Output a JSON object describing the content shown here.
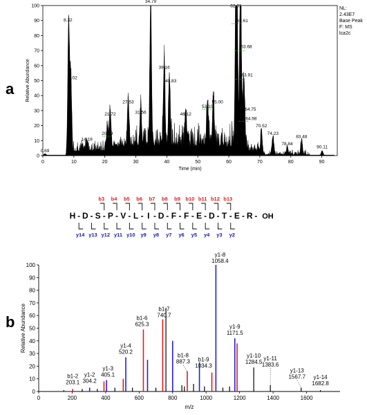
{
  "panels": {
    "a": "a",
    "b": "b"
  },
  "colors": {
    "trace": "#000000",
    "label_dash": "#00b000",
    "b_ion": "#e31a1c",
    "y_ion": "#1f1fd6",
    "b_label": "#e31a1c",
    "y_label": "#1a1aa8"
  },
  "chart_data": [
    {
      "type": "line",
      "panel": "a",
      "xlabel": "Time (min)",
      "ylabel": "Relative Abundance",
      "xlim": [
        0,
        95
      ],
      "ylim": [
        0,
        100
      ],
      "xticks": [
        0,
        10,
        20,
        30,
        40,
        50,
        60,
        70,
        80,
        90
      ],
      "yticks": [
        0,
        10,
        20,
        30,
        40,
        50,
        60,
        70,
        80,
        90,
        100
      ],
      "info": [
        "NL:",
        "2.43E7",
        "Base Peak",
        "F: MS",
        "lca2c"
      ],
      "peaks": [
        {
          "x": 0.69,
          "y": 1,
          "label": "0.69"
        },
        {
          "x": 8.32,
          "y": 87,
          "label": "8.32"
        },
        {
          "x": 9.02,
          "y": 49,
          "label": "9.02"
        },
        {
          "x": 14.19,
          "y": 8,
          "label": "14.19"
        },
        {
          "x": 20.79,
          "y": 12,
          "label": "20.79"
        },
        {
          "x": 21.72,
          "y": 25,
          "label": "21.72"
        },
        {
          "x": 27.53,
          "y": 33,
          "label": "27.53"
        },
        {
          "x": 31.56,
          "y": 26,
          "label": "31.56"
        },
        {
          "x": 34.79,
          "y": 100,
          "label": "34.79"
        },
        {
          "x": 39.16,
          "y": 56,
          "label": "39.16"
        },
        {
          "x": 40.83,
          "y": 47,
          "label": "40.83"
        },
        {
          "x": 46.12,
          "y": 25,
          "label": "46.12"
        },
        {
          "x": 53.1,
          "y": 30,
          "label": "53.10"
        },
        {
          "x": 55.0,
          "y": 33,
          "label": "55.00"
        },
        {
          "x": 62.31,
          "y": 97,
          "label": "62.31"
        },
        {
          "x": 62.61,
          "y": 87,
          "label": "62.61"
        },
        {
          "x": 63.68,
          "y": 69,
          "label": "63.68"
        },
        {
          "x": 63.91,
          "y": 50,
          "label": "63.91"
        },
        {
          "x": 64.75,
          "y": 28,
          "label": "64.75"
        },
        {
          "x": 64.98,
          "y": 22,
          "label": "64.98"
        },
        {
          "x": 70.52,
          "y": 17,
          "label": "70.52"
        },
        {
          "x": 74.23,
          "y": 12,
          "label": "74.23"
        },
        {
          "x": 78.84,
          "y": 5,
          "label": "78.84"
        },
        {
          "x": 83.48,
          "y": 10,
          "label": "83.48"
        },
        {
          "x": 90.11,
          "y": 3,
          "label": "90.11"
        }
      ]
    },
    {
      "type": "bar",
      "panel": "b",
      "xlabel": "m/z",
      "ylabel": "Relative Abundance",
      "xlim": [
        0,
        1800
      ],
      "ylim": [
        0,
        100
      ],
      "xticks": [
        0,
        200,
        400,
        600,
        800,
        1000,
        1200,
        1400,
        1600
      ],
      "yticks": [
        0,
        10,
        20,
        30,
        40,
        50,
        60,
        70,
        80,
        90,
        100
      ],
      "series": [
        {
          "ion": "b",
          "color": "#e31a1c",
          "x": [
            203.1,
            390,
            505,
            625.3,
            740.7,
            887.3,
            1034.3,
            1185
          ],
          "y": [
            2,
            8,
            10,
            49,
            57,
            16,
            15,
            38
          ]
        },
        {
          "ion": "y",
          "color": "#1f1fd6",
          "x": [
            304.2,
            405.1,
            520.2,
            650,
            800,
            960,
            1058.4,
            1171.5
          ],
          "y": [
            3,
            9,
            27,
            25,
            40,
            23,
            100,
            42
          ]
        },
        {
          "ion": "other",
          "color": "#000000",
          "x": [
            150,
            260,
            350,
            455,
            560,
            700,
            760,
            855,
            870,
            925,
            990,
            1100,
            1140,
            1284.5,
            1383.6,
            1567.7,
            1682.8
          ],
          "y": [
            1,
            2,
            2,
            3,
            3,
            3,
            66,
            5,
            4,
            6,
            4,
            3,
            4,
            19,
            5,
            3,
            1
          ]
        }
      ],
      "annotations": [
        {
          "name": "b1-2",
          "mz": "203.1",
          "x": 203.1,
          "y": 2
        },
        {
          "name": "y1-2",
          "mz": "304.2",
          "x": 304.2,
          "y": 3
        },
        {
          "name": "y1-3",
          "mz": "405.1",
          "x": 405.1,
          "y": 9
        },
        {
          "name": "y1-4",
          "mz": "520.2",
          "x": 520.2,
          "y": 27
        },
        {
          "name": "b1-6",
          "mz": "625.3",
          "x": 625.3,
          "y": 49
        },
        {
          "name": "b1-7",
          "mz": "740.7",
          "x": 740.7,
          "y": 57
        },
        {
          "name": "b1-8",
          "mz": "887.3",
          "x": 887.3,
          "y": 16
        },
        {
          "name": "b1-9",
          "mz": "1034.3",
          "x": 1034.3,
          "y": 15
        },
        {
          "name": "y1-8",
          "mz": "1058.4",
          "x": 1058.4,
          "y": 100
        },
        {
          "name": "y1-9",
          "mz": "1171.5",
          "x": 1171.5,
          "y": 42
        },
        {
          "name": "y1-10",
          "mz": "1284.5",
          "x": 1284.5,
          "y": 19
        },
        {
          "name": "y1-11",
          "mz": "1383.6",
          "x": 1383.6,
          "y": 5
        },
        {
          "name": "y1-13",
          "mz": "1567.7",
          "x": 1567.7,
          "y": 3
        },
        {
          "name": "y1-14",
          "mz": "1682.8",
          "x": 1682.8,
          "y": 1
        }
      ]
    }
  ],
  "peptide": {
    "residues": [
      "H",
      "D",
      "S",
      "P",
      "V",
      "L",
      "I",
      "D",
      "F",
      "F",
      "E",
      "D",
      "T",
      "E",
      "R"
    ],
    "terminus": "OH",
    "b_ions": [
      "b3",
      "b4",
      "b5",
      "b6",
      "b7",
      "b8",
      "b9",
      "b10",
      "b11",
      "b12",
      "b13"
    ],
    "y_ions": [
      "y14",
      "y13",
      "y12",
      "y11",
      "y10",
      "y9",
      "y8",
      "y7",
      "y6",
      "y5",
      "y4",
      "y3",
      "y2"
    ]
  }
}
